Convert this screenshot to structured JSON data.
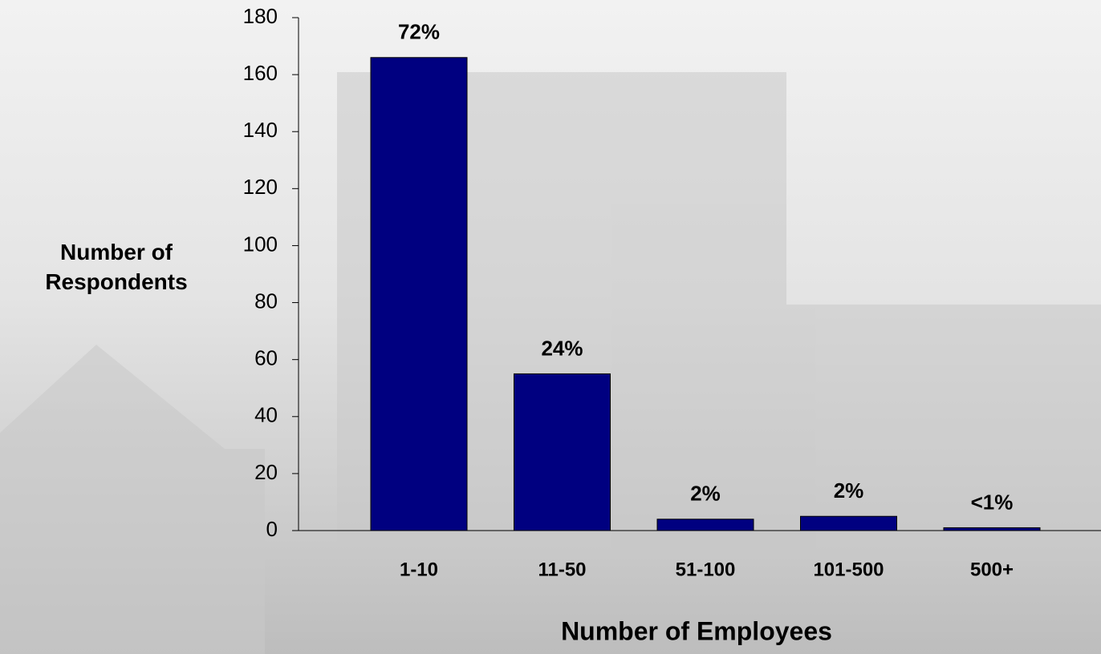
{
  "chart_data": {
    "type": "bar",
    "x_label": "Number of Employees",
    "y_label": "Number of Respondents",
    "categories": [
      "1-10",
      "11-50",
      "51-100",
      "101-500",
      "500+"
    ],
    "values": [
      166,
      55,
      4,
      5,
      1
    ],
    "value_labels": [
      "72%",
      "24%",
      "2%",
      "2%",
      "<1%"
    ],
    "color": "#000080",
    "ylim": [
      0,
      180
    ],
    "yticks": [
      0,
      20,
      40,
      60,
      80,
      100,
      120,
      140,
      160,
      180
    ]
  }
}
